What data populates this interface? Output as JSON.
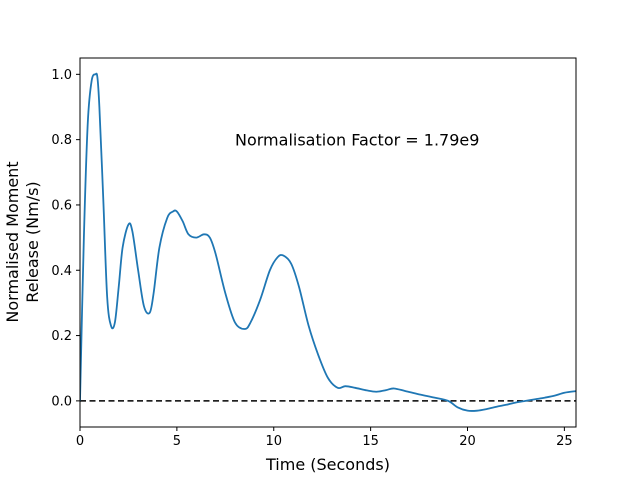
{
  "chart_data": {
    "type": "line",
    "title": "",
    "xlabel": "Time (Seconds)",
    "ylabel_lines": [
      "Normalised Moment",
      "Release (Nm/s)"
    ],
    "xlim": [
      0,
      25.6
    ],
    "ylim": [
      -0.08,
      1.05
    ],
    "x_ticks": [
      0,
      5,
      10,
      15,
      20,
      25
    ],
    "x_tick_labels": [
      "0",
      "5",
      "10",
      "15",
      "20",
      "25"
    ],
    "y_ticks": [
      0.0,
      0.2,
      0.4,
      0.6,
      0.8,
      1.0
    ],
    "y_tick_labels": [
      "0.0",
      "0.2",
      "0.4",
      "0.6",
      "0.8",
      "1.0"
    ],
    "grid": false,
    "series": [
      {
        "color": "#1f77b4",
        "x": [
          0,
          0.2,
          0.4,
          0.6,
          0.8,
          0.9,
          1.0,
          1.2,
          1.4,
          1.6,
          1.8,
          2.0,
          2.2,
          2.5,
          2.7,
          3.0,
          3.3,
          3.6,
          3.8,
          4.1,
          4.5,
          4.8,
          5.0,
          5.3,
          5.6,
          6.0,
          6.4,
          6.7,
          7.0,
          7.5,
          8.0,
          8.5,
          8.8,
          9.3,
          9.8,
          10.2,
          10.5,
          10.9,
          11.3,
          11.8,
          12.3,
          12.8,
          13.3,
          13.7,
          14.2,
          14.8,
          15.3,
          15.8,
          16.2,
          16.8,
          17.5,
          18.3,
          19.0,
          19.5,
          20.0,
          20.5,
          21.0,
          21.5,
          22.0,
          22.5,
          23.0,
          23.5,
          24.0,
          24.5,
          25.0,
          25.6
        ],
        "y": [
          0.0,
          0.5,
          0.85,
          0.98,
          1.0,
          0.99,
          0.9,
          0.62,
          0.32,
          0.23,
          0.24,
          0.35,
          0.47,
          0.54,
          0.52,
          0.4,
          0.29,
          0.27,
          0.33,
          0.47,
          0.56,
          0.58,
          0.58,
          0.55,
          0.51,
          0.5,
          0.51,
          0.5,
          0.45,
          0.33,
          0.24,
          0.22,
          0.24,
          0.31,
          0.4,
          0.44,
          0.445,
          0.42,
          0.35,
          0.23,
          0.14,
          0.07,
          0.04,
          0.045,
          0.04,
          0.032,
          0.028,
          0.033,
          0.038,
          0.03,
          0.02,
          0.01,
          0.0,
          -0.02,
          -0.03,
          -0.03,
          -0.025,
          -0.018,
          -0.012,
          -0.005,
          0.0,
          0.005,
          0.01,
          0.016,
          0.025,
          0.03
        ]
      }
    ],
    "reference_line": {
      "y": 0.0,
      "style": "dashed",
      "color": "#000000"
    },
    "annotation": {
      "text": "Normalisation Factor = 1.79e9",
      "x": 8.0,
      "y": 0.8
    }
  }
}
